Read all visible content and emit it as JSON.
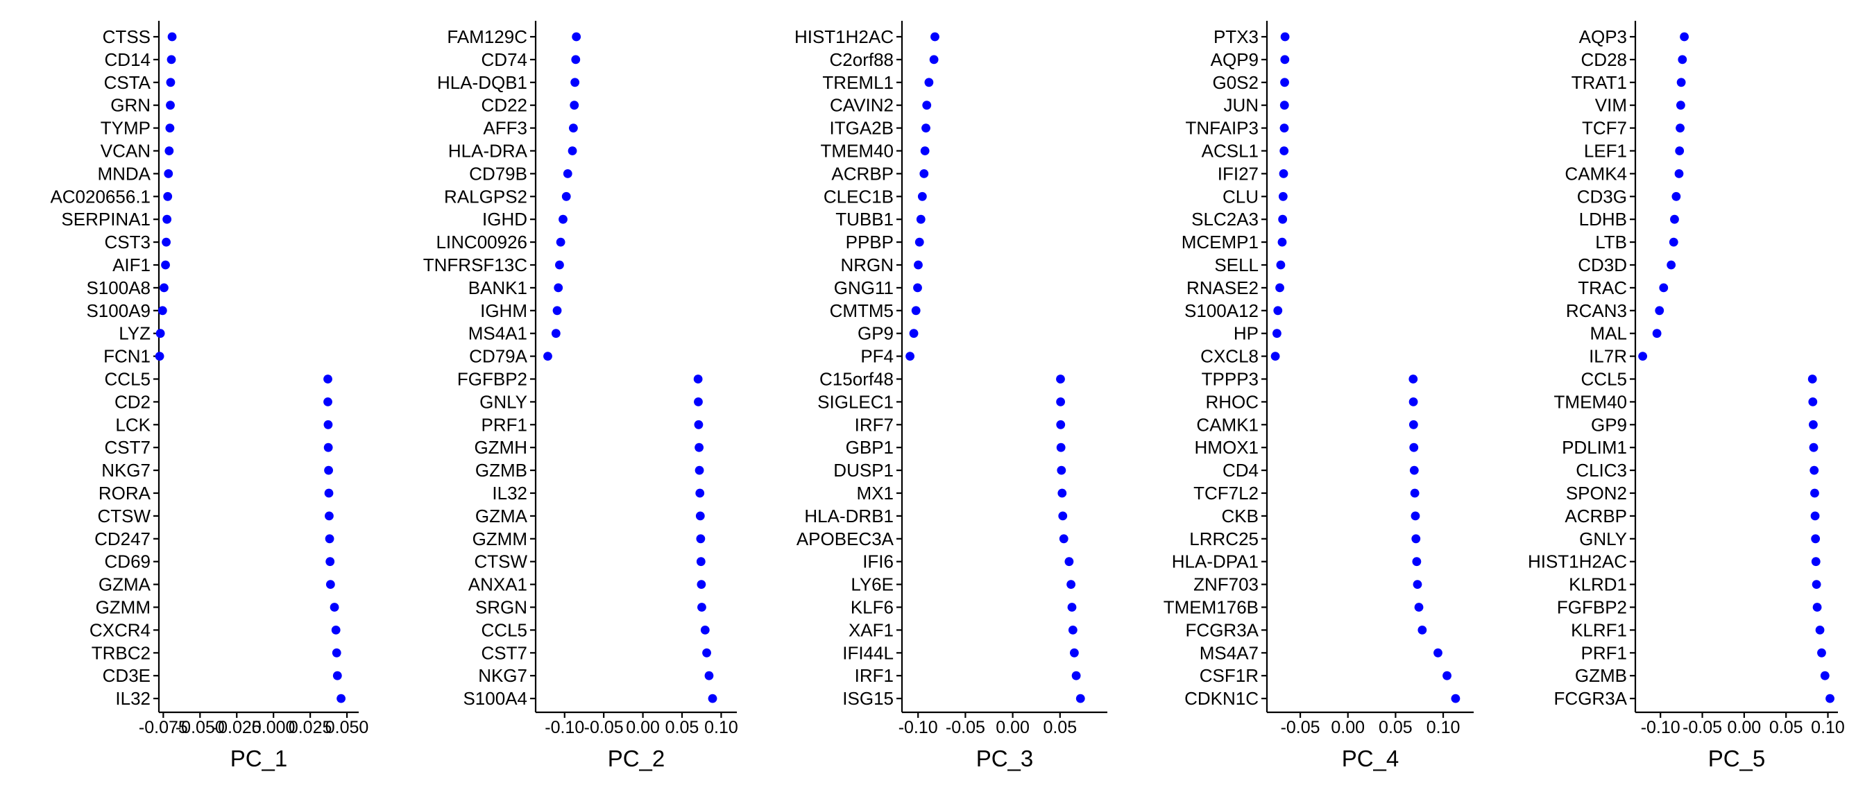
{
  "point_color": "#0000ff",
  "chart_data": [
    {
      "type": "scatter",
      "xlabel": "PC_1",
      "xlim": [
        -0.078,
        0.058
      ],
      "xticks": [
        -0.075,
        -0.05,
        -0.025,
        0.0,
        0.025,
        0.05
      ],
      "xtick_labels": [
        "-0.075",
        "-0.050",
        "-0.025",
        "0.000",
        "0.025",
        "0.050"
      ],
      "genes": [
        "CTSS",
        "CD14",
        "CSTA",
        "GRN",
        "TYMP",
        "VCAN",
        "MNDA",
        "AC020656.1",
        "SERPINA1",
        "CST3",
        "AIF1",
        "S100A8",
        "S100A9",
        "LYZ",
        "FCN1",
        "CCL5",
        "CD2",
        "LCK",
        "CST7",
        "NKG7",
        "RORA",
        "CTSW",
        "CD247",
        "CD69",
        "GZMA",
        "GZMM",
        "CXCR4",
        "TRBC2",
        "CD3E",
        "IL32"
      ],
      "values": [
        -0.069,
        -0.0695,
        -0.07,
        -0.0702,
        -0.0705,
        -0.071,
        -0.0715,
        -0.072,
        -0.0725,
        -0.073,
        -0.0735,
        -0.0745,
        -0.0755,
        -0.077,
        -0.0775,
        0.037,
        0.037,
        0.0372,
        0.0373,
        0.0375,
        0.0377,
        0.0379,
        0.0382,
        0.0385,
        0.0388,
        0.0415,
        0.0425,
        0.043,
        0.0435,
        0.046
      ]
    },
    {
      "type": "scatter",
      "xlabel": "PC_2",
      "xlim": [
        -0.137,
        0.12
      ],
      "xticks": [
        -0.1,
        -0.05,
        0.0,
        0.05,
        0.1
      ],
      "xtick_labels": [
        "-0.10",
        "-0.05",
        "0.00",
        "0.05",
        "0.10"
      ],
      "genes": [
        "FAM129C",
        "CD74",
        "HLA-DQB1",
        "CD22",
        "AFF3",
        "HLA-DRA",
        "CD79B",
        "RALGPS2",
        "IGHD",
        "LINC00926",
        "TNFRSF13C",
        "BANK1",
        "IGHM",
        "MS4A1",
        "CD79A",
        "FGFBP2",
        "GNLY",
        "PRF1",
        "GZMH",
        "GZMB",
        "IL32",
        "GZMA",
        "GZMM",
        "CTSW",
        "ANXA1",
        "SRGN",
        "CCL5",
        "CST7",
        "NKG7",
        "S100A4"
      ],
      "values": [
        -0.085,
        -0.0858,
        -0.0868,
        -0.0876,
        -0.0888,
        -0.09,
        -0.096,
        -0.0978,
        -0.102,
        -0.105,
        -0.1065,
        -0.108,
        -0.1095,
        -0.111,
        -0.1215,
        0.0705,
        0.0708,
        0.0712,
        0.0718,
        0.0722,
        0.0728,
        0.0733,
        0.0738,
        0.0742,
        0.0747,
        0.0752,
        0.0795,
        0.0815,
        0.0845,
        0.089
      ]
    },
    {
      "type": "scatter",
      "xlabel": "PC_3",
      "xlim": [
        -0.117,
        0.1
      ],
      "xticks": [
        -0.1,
        -0.05,
        0.0,
        0.05
      ],
      "xtick_labels": [
        "-0.10",
        "-0.05",
        "0.00",
        "0.05"
      ],
      "genes": [
        "HIST1H2AC",
        "C2orf88",
        "TREML1",
        "CAVIN2",
        "ITGA2B",
        "TMEM40",
        "ACRBP",
        "CLEC1B",
        "TUBB1",
        "PPBP",
        "NRGN",
        "GNG11",
        "CMTM5",
        "GP9",
        "PF4",
        "C15orf48",
        "SIGLEC1",
        "IRF7",
        "GBP1",
        "DUSP1",
        "MX1",
        "HLA-DRB1",
        "APOBEC3A",
        "IFI6",
        "LY6E",
        "KLF6",
        "XAF1",
        "IFI44L",
        "IRF1",
        "ISG15"
      ],
      "values": [
        -0.0822,
        -0.0832,
        -0.0885,
        -0.0908,
        -0.0917,
        -0.0927,
        -0.0937,
        -0.0955,
        -0.097,
        -0.0985,
        -0.0998,
        -0.1005,
        -0.1022,
        -0.1045,
        -0.1085,
        0.0505,
        0.0506,
        0.0507,
        0.051,
        0.0515,
        0.0522,
        0.0529,
        0.054,
        0.0596,
        0.0616,
        0.0626,
        0.0636,
        0.0651,
        0.0671,
        0.0716
      ]
    },
    {
      "type": "scatter",
      "xlabel": "PC_4",
      "xlim": [
        -0.085,
        0.132
      ],
      "xticks": [
        -0.05,
        0.0,
        0.05,
        0.1
      ],
      "xtick_labels": [
        "-0.05",
        "0.00",
        "0.05",
        "0.10"
      ],
      "genes": [
        "PTX3",
        "AQP9",
        "G0S2",
        "JUN",
        "TNFAIP3",
        "ACSL1",
        "IFI27",
        "CLU",
        "SLC2A3",
        "MCEMP1",
        "SELL",
        "RNASE2",
        "S100A12",
        "HP",
        "CXCL8",
        "TPPP3",
        "RHOC",
        "CAMK1",
        "HMOX1",
        "CD4",
        "TCF7L2",
        "CKB",
        "LRRC25",
        "HLA-DPA1",
        "ZNF703",
        "TMEM176B",
        "FCGR3A",
        "MS4A7",
        "CSF1R",
        "CDKN1C"
      ],
      "values": [
        -0.066,
        -0.0662,
        -0.0664,
        -0.0666,
        -0.0668,
        -0.067,
        -0.0675,
        -0.068,
        -0.0685,
        -0.069,
        -0.0705,
        -0.0715,
        -0.0735,
        -0.0745,
        -0.0762,
        0.0685,
        0.0687,
        0.0689,
        0.0692,
        0.0696,
        0.0702,
        0.0708,
        0.0714,
        0.0722,
        0.073,
        0.0745,
        0.078,
        0.0945,
        0.104,
        0.113
      ]
    },
    {
      "type": "scatter",
      "xlabel": "PC_5",
      "xlim": [
        -0.13,
        0.112
      ],
      "xticks": [
        -0.1,
        -0.05,
        0.0,
        0.05,
        0.1
      ],
      "xtick_labels": [
        "-0.10",
        "-0.05",
        "0.00",
        "0.05",
        "0.10"
      ],
      "genes": [
        "AQP3",
        "CD28",
        "TRAT1",
        "VIM",
        "TCF7",
        "LEF1",
        "CAMK4",
        "CD3G",
        "LDHB",
        "LTB",
        "CD3D",
        "TRAC",
        "RCAN3",
        "MAL",
        "IL7R",
        "CCL5",
        "TMEM40",
        "GP9",
        "PDLIM1",
        "CLIC3",
        "SPON2",
        "ACRBP",
        "GNLY",
        "HIST1H2AC",
        "KLRD1",
        "FGFBP2",
        "KLRF1",
        "PRF1",
        "GZMB",
        "FCGR3A"
      ],
      "values": [
        -0.0715,
        -0.0738,
        -0.0752,
        -0.0758,
        -0.0765,
        -0.0772,
        -0.0778,
        -0.0812,
        -0.0832,
        -0.0842,
        -0.0872,
        -0.0962,
        -0.1012,
        -0.1042,
        -0.1212,
        0.0815,
        0.082,
        0.0825,
        0.083,
        0.0836,
        0.0842,
        0.0847,
        0.0852,
        0.0857,
        0.0864,
        0.0872,
        0.0905,
        0.0925,
        0.0965,
        0.1025
      ]
    }
  ]
}
